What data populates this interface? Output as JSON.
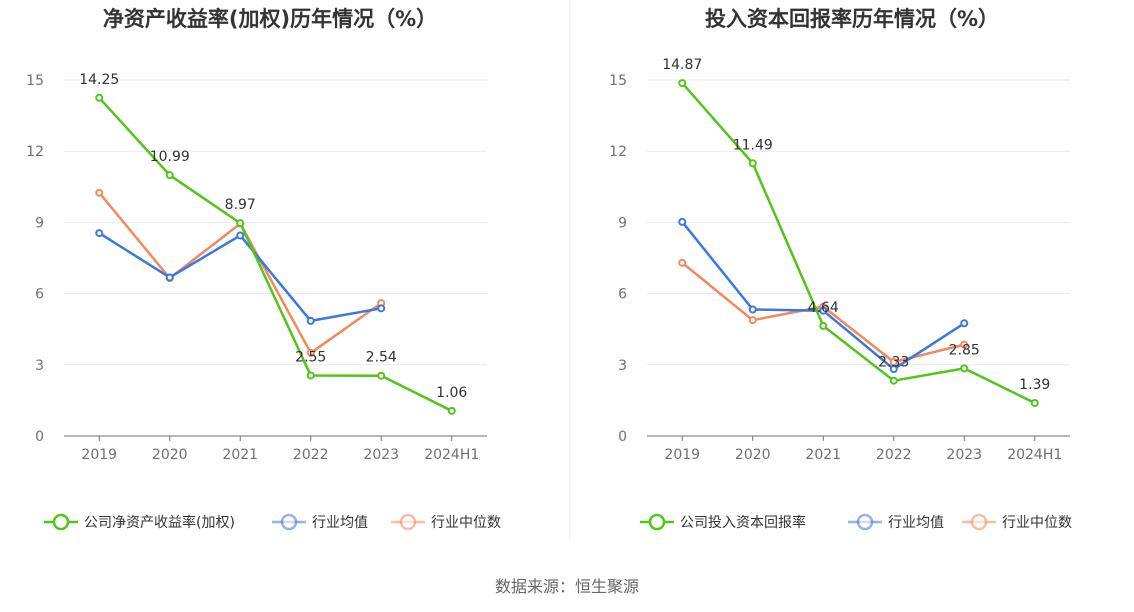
{
  "source": "数据来源：恒生聚源",
  "chart_data": [
    {
      "type": "line",
      "title": "净资产收益率(加权)历年情况（%）",
      "categories": [
        "2019",
        "2020",
        "2021",
        "2022",
        "2023",
        "2024H1"
      ],
      "ylim": [
        0,
        15
      ],
      "yticks": [
        0,
        3,
        6,
        9,
        12,
        15
      ],
      "grid": true,
      "legend_position": "bottom",
      "series": [
        {
          "name": "公司净资产收益率(加权)",
          "color": "#52c41a",
          "values": [
            14.25,
            10.99,
            8.97,
            2.55,
            2.54,
            1.06
          ],
          "labels": [
            "14.25",
            "10.99",
            "8.97",
            "2.55",
            "2.54",
            "1.06"
          ]
        },
        {
          "name": "行业均值",
          "color": "#3b76e1",
          "values": [
            8.55,
            6.68,
            8.45,
            4.85,
            5.38,
            null
          ]
        },
        {
          "name": "行业中位数",
          "color": "#f08a5d",
          "values": [
            10.25,
            6.65,
            8.95,
            3.5,
            5.6,
            null
          ]
        }
      ]
    },
    {
      "type": "line",
      "title": "投入资本回报率历年情况（%）",
      "categories": [
        "2019",
        "2020",
        "2021",
        "2022",
        "2023",
        "2024H1"
      ],
      "ylim": [
        0,
        15
      ],
      "yticks": [
        0,
        3,
        6,
        9,
        12,
        15
      ],
      "grid": true,
      "legend_position": "bottom",
      "series": [
        {
          "name": "公司投入资本回报率",
          "color": "#52c41a",
          "values": [
            14.87,
            11.49,
            4.64,
            2.33,
            2.85,
            1.39
          ],
          "labels": [
            "14.87",
            "11.49",
            "4.64",
            "2.33",
            "2.85",
            "1.39"
          ]
        },
        {
          "name": "行业均值",
          "color": "#3b76e1",
          "values": [
            9.02,
            5.33,
            5.28,
            2.82,
            4.75,
            null
          ]
        },
        {
          "name": "行业中位数",
          "color": "#f08a5d",
          "values": [
            7.3,
            4.88,
            5.45,
            3.12,
            3.85,
            null
          ]
        }
      ]
    }
  ]
}
